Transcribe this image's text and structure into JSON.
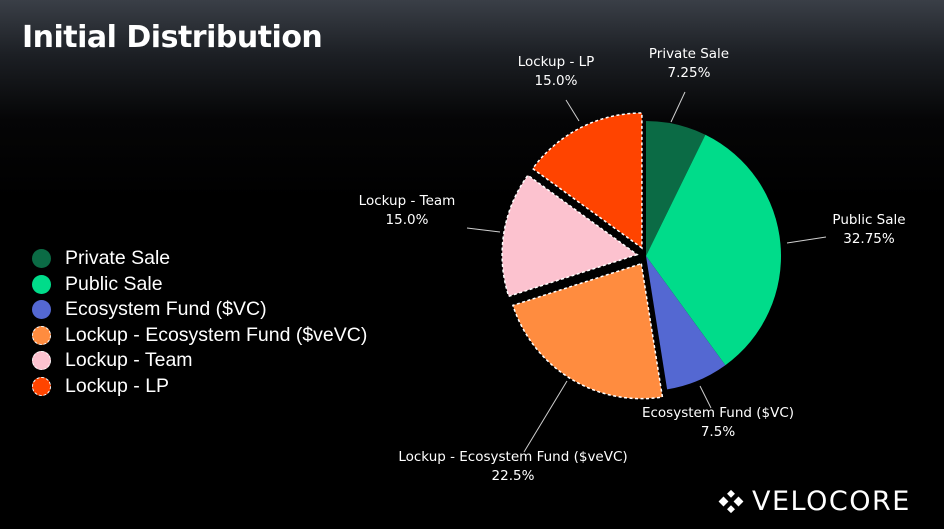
{
  "title": "Initial Distribution",
  "brand": {
    "name": "VELOCORE",
    "icon": "velocore-logo-icon"
  },
  "chart_data": {
    "type": "pie",
    "title": "Initial Distribution",
    "legend_position": "left",
    "slices": [
      {
        "name": "Private Sale",
        "value": 7.25,
        "value_label": "7.25%",
        "color": "#0b6b45",
        "exploded": false,
        "dashed": false
      },
      {
        "name": "Public Sale",
        "value": 32.75,
        "value_label": "32.75%",
        "color": "#00dc8a",
        "exploded": false,
        "dashed": false
      },
      {
        "name": "Ecosystem Fund ($VC)",
        "value": 7.5,
        "value_label": "7.5%",
        "color": "#5468d2",
        "exploded": false,
        "dashed": false
      },
      {
        "name": "Lockup - Ecosystem Fund ($veVC)",
        "value": 22.5,
        "value_label": "22.5%",
        "color": "#ff8c3f",
        "exploded": true,
        "dashed": true
      },
      {
        "name": "Lockup - Team",
        "value": 15.0,
        "value_label": "15.0%",
        "color": "#fcc2cf",
        "exploded": true,
        "dashed": true
      },
      {
        "name": "Lockup - LP",
        "value": 15.0,
        "value_label": "15.0%",
        "color": "#ff4400",
        "exploded": true,
        "dashed": true
      }
    ]
  }
}
